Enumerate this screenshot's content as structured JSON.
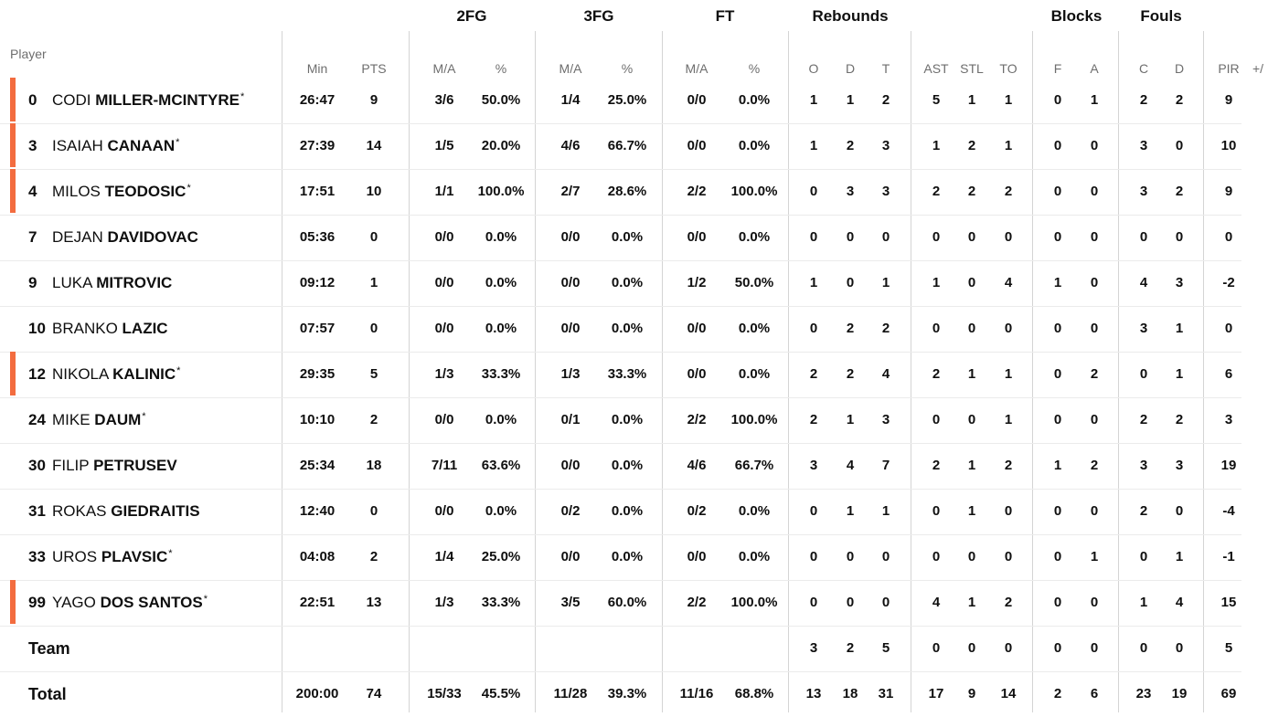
{
  "headers": {
    "groups": {
      "fg2": "2FG",
      "fg3": "3FG",
      "ft": "FT",
      "reb": "Rebounds",
      "blk": "Blocks",
      "fouls": "Fouls"
    },
    "player": "Player",
    "min": "Min",
    "pts": "PTS",
    "fg2_ma": "M/A",
    "fg2_pct": "%",
    "fg3_ma": "M/A",
    "fg3_pct": "%",
    "ft_ma": "M/A",
    "ft_pct": "%",
    "reb_o": "O",
    "reb_d": "D",
    "reb_t": "T",
    "ast": "AST",
    "stl": "STL",
    "to": "TO",
    "blk_f": "F",
    "blk_a": "A",
    "foul_c": "C",
    "foul_d": "D",
    "pir": "PIR",
    "pm": "+/"
  },
  "players": [
    {
      "num": "0",
      "first": "CODI",
      "last": "MILLER-MCINTYRE",
      "starter": true,
      "min": "26:47",
      "pts": "9",
      "fg2": "3/6",
      "fg2p": "50.0%",
      "fg3": "1/4",
      "fg3p": "25.0%",
      "ft": "0/0",
      "ftp": "0.0%",
      "o": "1",
      "d": "1",
      "t": "2",
      "ast": "5",
      "stl": "1",
      "to": "1",
      "bf": "0",
      "ba": "1",
      "fc": "2",
      "fd": "2",
      "pir": "9"
    },
    {
      "num": "3",
      "first": "ISAIAH",
      "last": "CANAAN",
      "starter": true,
      "min": "27:39",
      "pts": "14",
      "fg2": "1/5",
      "fg2p": "20.0%",
      "fg3": "4/6",
      "fg3p": "66.7%",
      "ft": "0/0",
      "ftp": "0.0%",
      "o": "1",
      "d": "2",
      "t": "3",
      "ast": "1",
      "stl": "2",
      "to": "1",
      "bf": "0",
      "ba": "0",
      "fc": "3",
      "fd": "0",
      "pir": "10"
    },
    {
      "num": "4",
      "first": "MILOS",
      "last": "TEODOSIC",
      "starter": true,
      "min": "17:51",
      "pts": "10",
      "fg2": "1/1",
      "fg2p": "100.0%",
      "fg3": "2/7",
      "fg3p": "28.6%",
      "ft": "2/2",
      "ftp": "100.0%",
      "o": "0",
      "d": "3",
      "t": "3",
      "ast": "2",
      "stl": "2",
      "to": "2",
      "bf": "0",
      "ba": "0",
      "fc": "3",
      "fd": "2",
      "pir": "9"
    },
    {
      "num": "7",
      "first": "DEJAN",
      "last": "DAVIDOVAC",
      "starter": false,
      "min": "05:36",
      "pts": "0",
      "fg2": "0/0",
      "fg2p": "0.0%",
      "fg3": "0/0",
      "fg3p": "0.0%",
      "ft": "0/0",
      "ftp": "0.0%",
      "o": "0",
      "d": "0",
      "t": "0",
      "ast": "0",
      "stl": "0",
      "to": "0",
      "bf": "0",
      "ba": "0",
      "fc": "0",
      "fd": "0",
      "pir": "0"
    },
    {
      "num": "9",
      "first": "LUKA",
      "last": "MITROVIC",
      "starter": false,
      "min": "09:12",
      "pts": "1",
      "fg2": "0/0",
      "fg2p": "0.0%",
      "fg3": "0/0",
      "fg3p": "0.0%",
      "ft": "1/2",
      "ftp": "50.0%",
      "o": "1",
      "d": "0",
      "t": "1",
      "ast": "1",
      "stl": "0",
      "to": "4",
      "bf": "1",
      "ba": "0",
      "fc": "4",
      "fd": "3",
      "pir": "-2"
    },
    {
      "num": "10",
      "first": "BRANKO",
      "last": "LAZIC",
      "starter": false,
      "min": "07:57",
      "pts": "0",
      "fg2": "0/0",
      "fg2p": "0.0%",
      "fg3": "0/0",
      "fg3p": "0.0%",
      "ft": "0/0",
      "ftp": "0.0%",
      "o": "0",
      "d": "2",
      "t": "2",
      "ast": "0",
      "stl": "0",
      "to": "0",
      "bf": "0",
      "ba": "0",
      "fc": "3",
      "fd": "1",
      "pir": "0"
    },
    {
      "num": "12",
      "first": "NIKOLA",
      "last": "KALINIC",
      "starter": true,
      "min": "29:35",
      "pts": "5",
      "fg2": "1/3",
      "fg2p": "33.3%",
      "fg3": "1/3",
      "fg3p": "33.3%",
      "ft": "0/0",
      "ftp": "0.0%",
      "o": "2",
      "d": "2",
      "t": "4",
      "ast": "2",
      "stl": "1",
      "to": "1",
      "bf": "0",
      "ba": "2",
      "fc": "0",
      "fd": "1",
      "pir": "6"
    },
    {
      "num": "24",
      "first": "MIKE",
      "last": "DAUM",
      "starter": false,
      "star": true,
      "min": "10:10",
      "pts": "2",
      "fg2": "0/0",
      "fg2p": "0.0%",
      "fg3": "0/1",
      "fg3p": "0.0%",
      "ft": "2/2",
      "ftp": "100.0%",
      "o": "2",
      "d": "1",
      "t": "3",
      "ast": "0",
      "stl": "0",
      "to": "1",
      "bf": "0",
      "ba": "0",
      "fc": "2",
      "fd": "2",
      "pir": "3"
    },
    {
      "num": "30",
      "first": "FILIP",
      "last": "PETRUSEV",
      "starter": false,
      "min": "25:34",
      "pts": "18",
      "fg2": "7/11",
      "fg2p": "63.6%",
      "fg3": "0/0",
      "fg3p": "0.0%",
      "ft": "4/6",
      "ftp": "66.7%",
      "o": "3",
      "d": "4",
      "t": "7",
      "ast": "2",
      "stl": "1",
      "to": "2",
      "bf": "1",
      "ba": "2",
      "fc": "3",
      "fd": "3",
      "pir": "19"
    },
    {
      "num": "31",
      "first": "ROKAS",
      "last": "GIEDRAITIS",
      "starter": false,
      "min": "12:40",
      "pts": "0",
      "fg2": "0/0",
      "fg2p": "0.0%",
      "fg3": "0/2",
      "fg3p": "0.0%",
      "ft": "0/2",
      "ftp": "0.0%",
      "o": "0",
      "d": "1",
      "t": "1",
      "ast": "0",
      "stl": "1",
      "to": "0",
      "bf": "0",
      "ba": "0",
      "fc": "2",
      "fd": "0",
      "pir": "-4"
    },
    {
      "num": "33",
      "first": "UROS",
      "last": "PLAVSIC",
      "starter": false,
      "star": true,
      "min": "04:08",
      "pts": "2",
      "fg2": "1/4",
      "fg2p": "25.0%",
      "fg3": "0/0",
      "fg3p": "0.0%",
      "ft": "0/0",
      "ftp": "0.0%",
      "o": "0",
      "d": "0",
      "t": "0",
      "ast": "0",
      "stl": "0",
      "to": "0",
      "bf": "0",
      "ba": "1",
      "fc": "0",
      "fd": "1",
      "pir": "-1"
    },
    {
      "num": "99",
      "first": "YAGO",
      "last": "DOS SANTOS",
      "starter": true,
      "min": "22:51",
      "pts": "13",
      "fg2": "1/3",
      "fg2p": "33.3%",
      "fg3": "3/5",
      "fg3p": "60.0%",
      "ft": "2/2",
      "ftp": "100.0%",
      "o": "0",
      "d": "0",
      "t": "0",
      "ast": "4",
      "stl": "1",
      "to": "2",
      "bf": "0",
      "ba": "0",
      "fc": "1",
      "fd": "4",
      "pir": "15"
    }
  ],
  "team": {
    "label": "Team",
    "o": "3",
    "d": "2",
    "t": "5",
    "ast": "0",
    "stl": "0",
    "to": "0",
    "bf": "0",
    "ba": "0",
    "fc": "0",
    "fd": "0",
    "pir": "5"
  },
  "total": {
    "label": "Total",
    "min": "200:00",
    "pts": "74",
    "fg2": "15/33",
    "fg2p": "45.5%",
    "fg3": "11/28",
    "fg3p": "39.3%",
    "ft": "11/16",
    "ftp": "68.8%",
    "o": "13",
    "d": "18",
    "t": "31",
    "ast": "17",
    "stl": "9",
    "to": "14",
    "bf": "2",
    "ba": "6",
    "fc": "23",
    "fd": "19",
    "pir": "69"
  },
  "colors": {
    "starter_bar": "#f36c3f"
  }
}
